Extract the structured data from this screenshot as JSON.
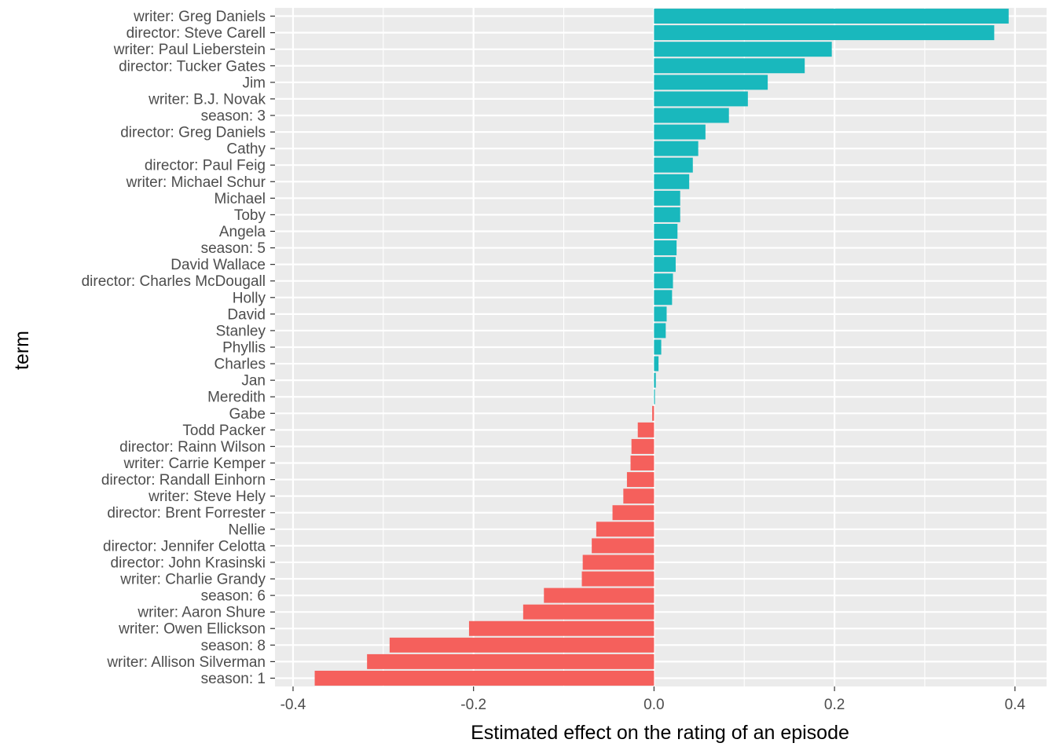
{
  "chart_data": {
    "type": "bar",
    "orientation": "horizontal",
    "xlabel": "Estimated effect on the rating of an episode",
    "ylabel": "term",
    "xlim": [
      -0.42,
      0.435
    ],
    "xticks": [
      -0.4,
      -0.2,
      0.0,
      0.2,
      0.4
    ],
    "xtick_labels": [
      "-0.4",
      "-0.2",
      "0.0",
      "0.2",
      "0.4"
    ],
    "grid": true,
    "legend": "none",
    "colors": {
      "positive": "#19b8bd",
      "negative": "#f5605c",
      "panel": "#ebebeb",
      "grid": "#ffffff"
    },
    "categories": [
      "writer: Greg Daniels",
      "director: Steve Carell",
      "writer: Paul Lieberstein",
      "director: Tucker Gates",
      "Jim",
      "writer: B.J. Novak",
      "season: 3",
      "director: Greg Daniels",
      "Cathy",
      "director: Paul Feig",
      "writer: Michael Schur",
      "Michael",
      "Toby",
      "Angela",
      "season: 5",
      "David Wallace",
      "director: Charles McDougall",
      "Holly",
      "David",
      "Stanley",
      "Phyllis",
      "Charles",
      "Jan",
      "Meredith",
      "Gabe",
      "Todd Packer",
      "director: Rainn Wilson",
      "writer: Carrie Kemper",
      "director: Randall Einhorn",
      "writer: Steve Hely",
      "director: Brent Forrester",
      "Nellie",
      "director: Jennifer Celotta",
      "director: John Krasinski",
      "writer: Charlie Grandy",
      "season: 6",
      "writer: Aaron Shure",
      "writer: Owen Ellickson",
      "season: 8",
      "writer: Allison Silverman",
      "season: 1"
    ],
    "values": [
      0.393,
      0.377,
      0.197,
      0.167,
      0.126,
      0.104,
      0.083,
      0.057,
      0.049,
      0.043,
      0.039,
      0.029,
      0.029,
      0.026,
      0.025,
      0.024,
      0.021,
      0.02,
      0.014,
      0.013,
      0.008,
      0.005,
      0.002,
      0.001,
      -0.002,
      -0.018,
      -0.025,
      -0.026,
      -0.03,
      -0.034,
      -0.046,
      -0.064,
      -0.069,
      -0.079,
      -0.08,
      -0.122,
      -0.145,
      -0.205,
      -0.293,
      -0.318,
      -0.376
    ]
  }
}
